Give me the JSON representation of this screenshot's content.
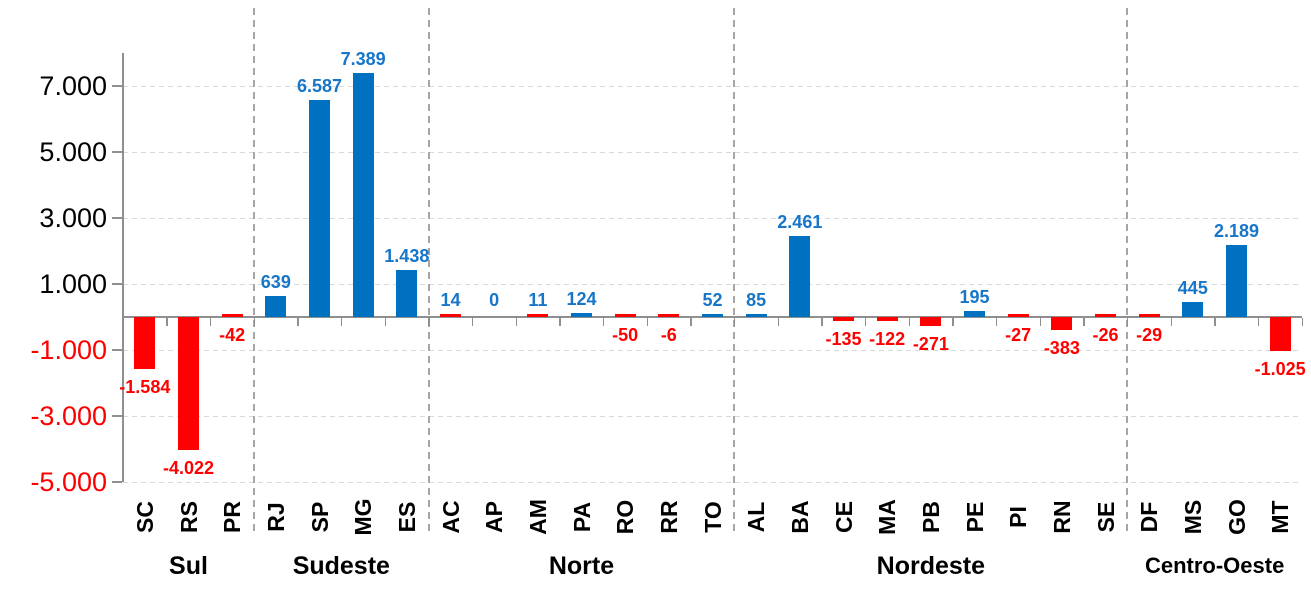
{
  "chart_data": {
    "type": "bar",
    "title": "",
    "xlabel": "",
    "ylabel": "",
    "grid": "horizontal-dashed",
    "legend": null,
    "y_axis": {
      "ylim": [
        -5000,
        8000
      ],
      "tick_values": [
        7000,
        5000,
        3000,
        1000,
        -1000,
        -3000,
        -5000
      ],
      "tick_labels": [
        "7.000",
        "5.000",
        "3.000",
        "1.000",
        "-1.000",
        "-3.000",
        "-5.000"
      ],
      "positive_tick_color": "#000000",
      "negative_tick_color": "#ff0000"
    },
    "colors": {
      "positive_bar": "#0070c0",
      "negative_bar": "#ff0000",
      "positive_label": "#1776c8",
      "negative_label": "#ff0000",
      "axis": "#8f8f8f",
      "separator": "#a6a6a6",
      "gridline": "#d9d9d9"
    },
    "groups": [
      {
        "name": "Sul",
        "states": [
          {
            "label": "SC",
            "value": -1584,
            "display": "-1.584"
          },
          {
            "label": "RS",
            "value": -4022,
            "display": "-4.022"
          },
          {
            "label": "PR",
            "value": -42,
            "display": "-42"
          }
        ]
      },
      {
        "name": "Sudeste",
        "states": [
          {
            "label": "RJ",
            "value": 639,
            "display": "639"
          },
          {
            "label": "SP",
            "value": 6587,
            "display": "6.587"
          },
          {
            "label": "MG",
            "value": 7389,
            "display": "7.389"
          },
          {
            "label": "ES",
            "value": 1438,
            "display": "1.438"
          }
        ]
      },
      {
        "name": "Norte",
        "states": [
          {
            "label": "AC",
            "value": 14,
            "display": "14",
            "bar_color": "#ff0000"
          },
          {
            "label": "AP",
            "value": 0,
            "display": "0"
          },
          {
            "label": "AM",
            "value": 11,
            "display": "11",
            "bar_color": "#ff0000"
          },
          {
            "label": "PA",
            "value": 124,
            "display": "124"
          },
          {
            "label": "RO",
            "value": -50,
            "display": "-50"
          },
          {
            "label": "RR",
            "value": -6,
            "display": "-6"
          },
          {
            "label": "TO",
            "value": 52,
            "display": "52"
          }
        ]
      },
      {
        "name": "Nordeste",
        "states": [
          {
            "label": "AL",
            "value": 85,
            "display": "85"
          },
          {
            "label": "BA",
            "value": 2461,
            "display": "2.461"
          },
          {
            "label": "CE",
            "value": -135,
            "display": "-135"
          },
          {
            "label": "MA",
            "value": -122,
            "display": "-122"
          },
          {
            "label": "PB",
            "value": -271,
            "display": "-271"
          },
          {
            "label": "PE",
            "value": 195,
            "display": "195"
          },
          {
            "label": "PI",
            "value": -27,
            "display": "-27"
          },
          {
            "label": "RN",
            "value": -383,
            "display": "-383"
          },
          {
            "label": "SE",
            "value": -26,
            "display": "-26"
          }
        ]
      },
      {
        "name": "Centro-Oeste",
        "states": [
          {
            "label": "DF",
            "value": -29,
            "display": "-29"
          },
          {
            "label": "MS",
            "value": 445,
            "display": "445"
          },
          {
            "label": "GO",
            "value": 2189,
            "display": "2.189"
          },
          {
            "label": "MT",
            "value": -1025,
            "display": "-1.025"
          }
        ]
      }
    ]
  }
}
